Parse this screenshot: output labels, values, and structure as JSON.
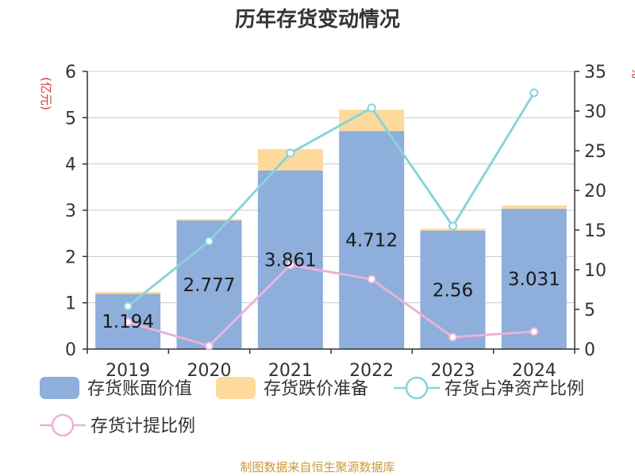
{
  "title": "历年存货变动情况",
  "source": "制图数据来自恒生聚源数据库",
  "units": {
    "left": "(亿元)",
    "right": "%"
  },
  "colors": {
    "book_value": "#8eaedb",
    "impairment": "#fdd99b",
    "ratio_net_assets": "#88d4d8",
    "provision_ratio": "#e8b3db",
    "grid": "#c8c8c8",
    "axis": "#333333",
    "unit_text": "#d63a3a",
    "source_text": "#c89a3c"
  },
  "legend": [
    {
      "key": "book_value",
      "label": "存货账面价值",
      "kind": "box"
    },
    {
      "key": "impairment",
      "label": "存货跌价准备",
      "kind": "box"
    },
    {
      "key": "ratio_net_assets",
      "label": "存货占净资产比例",
      "kind": "line"
    },
    {
      "key": "provision_ratio",
      "label": "存货计提比例",
      "kind": "line"
    }
  ],
  "chart_data": {
    "type": "bar",
    "stacked": true,
    "title": "历年存货变动情况",
    "categories": [
      "2019",
      "2020",
      "2021",
      "2022",
      "2023",
      "2024"
    ],
    "ylabel": "(亿元)",
    "y2label": "%",
    "ylim": [
      0,
      6
    ],
    "y2lim": [
      0,
      35
    ],
    "yticks": [
      0,
      1,
      2,
      3,
      4,
      5,
      6
    ],
    "y2ticks": [
      0,
      5,
      10,
      15,
      20,
      25,
      30,
      35
    ],
    "grid": true,
    "legend_position": "bottom",
    "bar_series": [
      {
        "name": "存货账面价值",
        "key": "book_value",
        "values": [
          1.194,
          2.777,
          3.861,
          4.712,
          2.56,
          3.031
        ],
        "labels": [
          "1.194",
          "2.777",
          "3.861",
          "4.712",
          "2.56",
          "3.031"
        ]
      },
      {
        "name": "存货跌价准备",
        "key": "impairment",
        "values": [
          0.04,
          0.03,
          0.46,
          0.46,
          0.04,
          0.07
        ]
      }
    ],
    "line_series": [
      {
        "name": "存货占净资产比例",
        "key": "ratio_net_assets",
        "axis": "right",
        "values": [
          5.4,
          13.6,
          24.7,
          30.4,
          15.5,
          32.3
        ]
      },
      {
        "name": "存货计提比例",
        "key": "provision_ratio",
        "axis": "right",
        "values": [
          3.4,
          0.4,
          10.6,
          8.8,
          1.5,
          2.2
        ]
      }
    ]
  }
}
